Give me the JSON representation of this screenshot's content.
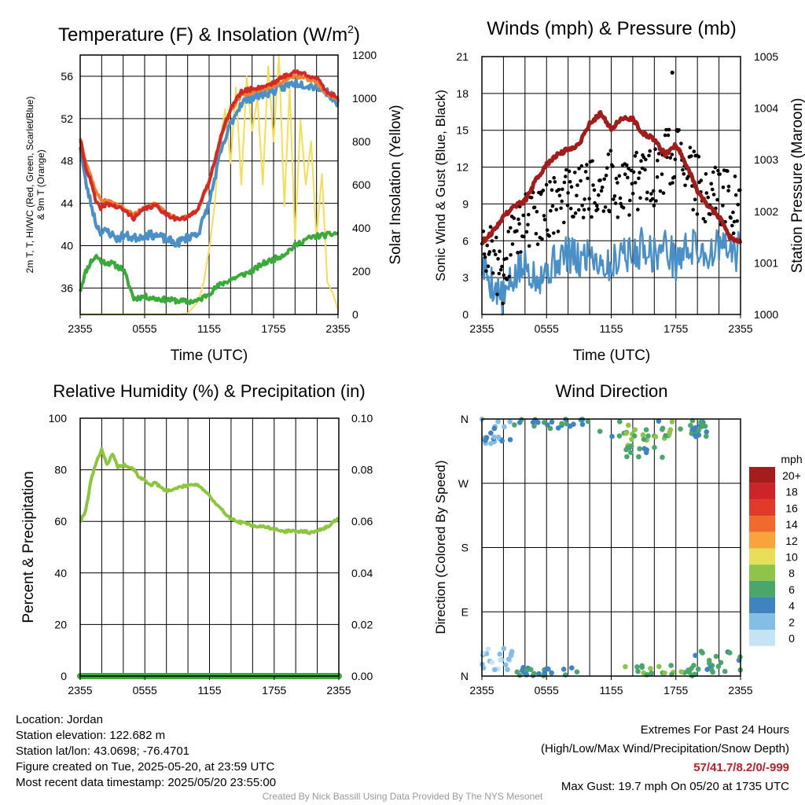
{
  "colors": {
    "temp_red": "#d22b26",
    "temp_orange": "#f08030",
    "dewpoint_green": "#3aaa3a",
    "wind_blue": "#4a90c8",
    "solar_yellow": "#f5dd55",
    "pressure_maroon": "#a31c1c",
    "rh_green": "#8cc63e",
    "precip_green": "#3aaa3a"
  },
  "chart_data": [
    {
      "type": "line",
      "title": "Temperature (F) & Insolation (W/m",
      "title_sup": "2",
      "title_end": ")",
      "xlabel": "Time (UTC)",
      "ylabel_line1": "2m T, T, HI/WC (Red, Green, Scarlet/Blue)",
      "ylabel_line2": "& 9m T (Orange)",
      "ylabel_right": "Solar Insolation (Yellow)",
      "x_ticks": [
        "2355",
        "0555",
        "1155",
        "1755",
        "2355"
      ],
      "ylim": [
        33.5,
        58
      ],
      "y_ticks": [
        36,
        40,
        44,
        48,
        52,
        56
      ],
      "y2lim": [
        0,
        1200
      ],
      "y2_ticks": [
        0,
        200,
        400,
        600,
        800,
        1000,
        1200
      ],
      "series": [
        {
          "id": "temp_2m",
          "x": [
            0,
            0.5,
            1,
            1.5,
            2,
            2.5,
            3,
            3.5,
            4,
            5,
            6,
            7,
            8,
            9,
            10,
            11,
            12,
            13,
            14,
            15,
            16,
            17,
            18,
            19,
            20,
            21,
            22,
            23,
            24
          ],
          "values": [
            50,
            47.5,
            46,
            44,
            43.5,
            44,
            43.8,
            43.6,
            43.4,
            42.6,
            43.5,
            43.8,
            43,
            42.5,
            42.6,
            43.6,
            46,
            50,
            53,
            54.5,
            54.8,
            55,
            55.4,
            56,
            56.4,
            56.2,
            55.8,
            54.5,
            54
          ]
        },
        {
          "id": "temp_9m",
          "x": [
            0,
            0.5,
            1,
            1.5,
            2,
            2.5,
            3,
            3.5,
            4,
            5,
            6,
            7,
            8,
            9,
            10,
            11,
            12,
            13,
            14,
            15,
            16,
            17,
            18,
            19,
            20,
            21,
            22,
            23,
            24
          ],
          "values": [
            50.2,
            48,
            46.5,
            45,
            44.3,
            44.2,
            44,
            43.8,
            43.6,
            42.9,
            43.7,
            43.9,
            43.1,
            42.6,
            42.7,
            43.4,
            46,
            49.8,
            52.8,
            54.2,
            54.5,
            54.8,
            55.1,
            55.6,
            56,
            55.8,
            55.4,
            54.3,
            53.8
          ]
        },
        {
          "id": "hi_wc",
          "x": [
            0,
            0.5,
            1,
            1.5,
            2,
            2.5,
            3,
            3.5,
            4,
            5,
            6,
            7,
            8,
            9,
            10,
            11,
            12,
            13,
            14,
            15,
            16,
            17,
            18,
            19,
            20,
            21,
            22,
            23,
            24
          ],
          "values": [
            49.5,
            46,
            44,
            42,
            41.2,
            41.4,
            41,
            40.6,
            41,
            40.7,
            41,
            41,
            40.6,
            40.2,
            40.8,
            41.2,
            44,
            48.5,
            51.5,
            53.5,
            54,
            54.3,
            54.6,
            55,
            55.4,
            55.2,
            55,
            54.5,
            53.5
          ]
        },
        {
          "id": "dewpoint",
          "x": [
            0,
            0.5,
            1,
            1.5,
            2,
            2.5,
            3,
            3.5,
            4,
            5,
            6,
            7,
            8,
            9,
            10,
            11,
            12,
            13,
            14,
            15,
            16,
            17,
            18,
            19,
            20,
            21,
            22,
            23,
            24
          ],
          "values": [
            35.8,
            37.5,
            38.5,
            39,
            38.5,
            38.4,
            38.3,
            38,
            37.8,
            35,
            35.2,
            35,
            34.9,
            34.8,
            34.7,
            34.8,
            35.5,
            36.3,
            36.8,
            37.2,
            37.6,
            38.3,
            38.7,
            39.2,
            40,
            40.6,
            40.9,
            41,
            41.2
          ]
        },
        {
          "id": "solar",
          "x": [
            0,
            2,
            4,
            6,
            8,
            9,
            10,
            11,
            11.5,
            12,
            12.5,
            13,
            13.5,
            14,
            14.5,
            15,
            15.5,
            16,
            16.5,
            17,
            17.5,
            18,
            18.5,
            19,
            19.5,
            20,
            20.5,
            21,
            21.5,
            22,
            22.5,
            23,
            23.5,
            24
          ],
          "values": [
            0,
            0,
            0,
            0,
            0,
            0,
            5,
            60,
            150,
            300,
            500,
            800,
            950,
            700,
            1050,
            600,
            1100,
            850,
            1000,
            600,
            1150,
            800,
            1200,
            500,
            1050,
            350,
            900,
            600,
            800,
            350,
            650,
            150,
            100,
            20
          ]
        }
      ]
    },
    {
      "type": "line",
      "title": "Winds (mph) & Pressure (mb)",
      "xlabel": "Time (UTC)",
      "ylabel": "Sonic Wind & Gust (Blue, Black)",
      "ylabel_right": "Station Pressure (Maroon)",
      "x_ticks": [
        "2355",
        "0555",
        "1155",
        "1755",
        "2355"
      ],
      "ylim": [
        0,
        21
      ],
      "y_ticks": [
        0,
        3,
        6,
        9,
        12,
        15,
        18,
        21
      ],
      "y2lim": [
        1000,
        1005
      ],
      "y2_ticks": [
        1000,
        1001,
        1002,
        1003,
        1004,
        1005
      ],
      "series": [
        {
          "id": "pressure",
          "x": [
            0,
            1,
            2,
            3,
            4,
            5,
            6,
            7,
            8,
            9,
            10,
            11,
            12,
            13,
            14,
            15,
            16,
            17,
            18,
            19,
            20,
            21,
            22,
            23,
            24
          ],
          "values": [
            1001.4,
            1001.6,
            1001.9,
            1002.1,
            1002.2,
            1002.6,
            1002.9,
            1003.1,
            1003.2,
            1003.3,
            1003.7,
            1003.9,
            1003.6,
            1003.8,
            1003.8,
            1003.5,
            1003.4,
            1003.1,
            1003.3,
            1002.9,
            1002.4,
            1002.1,
            1001.9,
            1001.5,
            1001.4
          ]
        },
        {
          "id": "sonic_wind",
          "x": [
            0,
            1,
            2,
            3,
            4,
            5,
            6,
            7,
            8,
            9,
            10,
            11,
            12,
            13,
            14,
            15,
            16,
            17,
            18,
            19,
            20,
            21,
            22,
            23,
            24
          ],
          "values": [
            4,
            2.5,
            1.2,
            3,
            4,
            3.2,
            3.5,
            4.5,
            5,
            4.2,
            5.2,
            4.3,
            3.8,
            5.5,
            4.5,
            5.8,
            4.8,
            5.6,
            4.3,
            5.4,
            5.4,
            4.8,
            5.6,
            5,
            5.2
          ]
        },
        {
          "id": "gust",
          "x": [
            0,
            1,
            2,
            3,
            4,
            5,
            6,
            7,
            8,
            9,
            10,
            11,
            12,
            13,
            14,
            15,
            16,
            17,
            18,
            19,
            20,
            21,
            22,
            23,
            24
          ],
          "values": [
            7,
            4.5,
            2.8,
            6.5,
            7.5,
            8,
            8.5,
            9,
            10,
            9.5,
            10.5,
            9.5,
            11,
            10,
            10.5,
            11.5,
            11,
            12.5,
            13,
            11.5,
            10.5,
            9.5,
            10,
            9,
            8.5
          ]
        }
      ],
      "max_gust_point": {
        "x": 17.67,
        "y": 19.7
      }
    },
    {
      "type": "line",
      "title": "Relative Humidity (%) & Precipitation (in)",
      "ylabel": "Percent & Precipitation",
      "x_ticks": [
        "2355",
        "0555",
        "1155",
        "1755",
        "2355"
      ],
      "ylim": [
        0,
        100
      ],
      "y_ticks": [
        0,
        20,
        40,
        60,
        80,
        100
      ],
      "y2lim": [
        0,
        0.1
      ],
      "y2_ticks": [
        "0.00",
        "0.02",
        "0.04",
        "0.06",
        "0.08",
        "0.10"
      ],
      "series": [
        {
          "id": "rh",
          "x": [
            0,
            0.5,
            1,
            1.5,
            2,
            2.5,
            3,
            3.5,
            4,
            4.5,
            5,
            5.5,
            6,
            6.5,
            7,
            7.5,
            8,
            8.5,
            9,
            9.5,
            10,
            10.5,
            11,
            11.5,
            12,
            12.5,
            13,
            13.5,
            14,
            14.5,
            15,
            15.5,
            16,
            16.5,
            17,
            17.5,
            18,
            18.5,
            19,
            19.5,
            20,
            20.5,
            21,
            21.5,
            22,
            22.5,
            23,
            23.5,
            24
          ],
          "values": [
            60,
            64,
            76,
            83,
            88,
            82,
            86,
            81,
            82,
            81,
            80,
            77,
            76,
            74,
            75,
            73,
            72,
            72,
            73,
            73.5,
            74,
            74.5,
            74,
            72,
            70,
            67,
            65,
            63,
            61,
            60,
            59.5,
            59,
            58.5,
            58,
            58,
            57.5,
            57,
            56.5,
            56,
            56.5,
            55.8,
            56.2,
            56,
            55.5,
            56.5,
            57,
            58,
            60,
            61
          ]
        },
        {
          "id": "precip",
          "x": [
            0,
            24
          ],
          "values": [
            0,
            0
          ]
        }
      ]
    },
    {
      "type": "scatter",
      "title": "Wind Direction",
      "ylabel": "Direction (Colored By Speed)",
      "x_ticks": [
        "2355",
        "0555",
        "1155",
        "1755",
        "2355"
      ],
      "y_ticks": [
        "N",
        "E",
        "S",
        "W",
        "N"
      ],
      "ylim": [
        0,
        360
      ],
      "legend_title": "mph",
      "legend_labels": [
        "20+",
        "18",
        "16",
        "14",
        "12",
        "10",
        "8",
        "6",
        "4",
        "2",
        "0"
      ],
      "legend_colors": [
        "#a51c1c",
        "#cc2428",
        "#e23a2a",
        "#f06a2c",
        "#f9a33c",
        "#e8de58",
        "#8ec449",
        "#4aa66a",
        "#3f83bf",
        "#84bde6",
        "#c4e4f6"
      ],
      "clusters": [
        {
          "x_range": [
            0,
            3
          ],
          "dir_range": [
            325,
            360
          ],
          "speed_range": [
            1,
            4
          ]
        },
        {
          "x_range": [
            3,
            10
          ],
          "dir_range": [
            345,
            360
          ],
          "speed_range": [
            3,
            6
          ]
        },
        {
          "x_range": [
            10,
            19
          ],
          "dir_range": [
            330,
            360
          ],
          "speed_range": [
            4,
            9
          ]
        },
        {
          "x_range": [
            13,
            17
          ],
          "dir_range": [
            305,
            345
          ],
          "speed_range": [
            4,
            8
          ]
        },
        {
          "x_range": [
            19,
            21
          ],
          "dir_range": [
            335,
            358
          ],
          "speed_range": [
            4,
            7
          ]
        },
        {
          "x_range": [
            0,
            3
          ],
          "dir_range": [
            0,
            40
          ],
          "speed_range": [
            0,
            3
          ]
        },
        {
          "x_range": [
            3,
            9
          ],
          "dir_range": [
            0,
            12
          ],
          "speed_range": [
            3,
            6
          ]
        },
        {
          "x_range": [
            13,
            20
          ],
          "dir_range": [
            0,
            15
          ],
          "speed_range": [
            5,
            9
          ]
        },
        {
          "x_range": [
            19,
            24
          ],
          "dir_range": [
            5,
            35
          ],
          "speed_range": [
            4,
            7
          ]
        }
      ]
    }
  ],
  "footer": {
    "location": "Location: Jordan",
    "elevation": "Station elevation: 122.682 m",
    "latlon": "Station lat/lon: 43.0698; -76.4701",
    "created": "Figure created on Tue, 2025-05-20, at 23:59 UTC",
    "recent": "Most recent data timestamp: 2025/05/20 23:55:00",
    "extremes_title": "Extremes For Past 24 Hours",
    "extremes_desc": "(High/Low/Max Wind/Precipitation/Snow Depth)",
    "extremes_values": "57/41.7/8.2/0/-999",
    "max_gust": "Max Gust: 19.7 mph On 05/20 at 1735 UTC",
    "credit": "Created By Nick Bassill Using Data Provided By The NYS Mesonet"
  }
}
